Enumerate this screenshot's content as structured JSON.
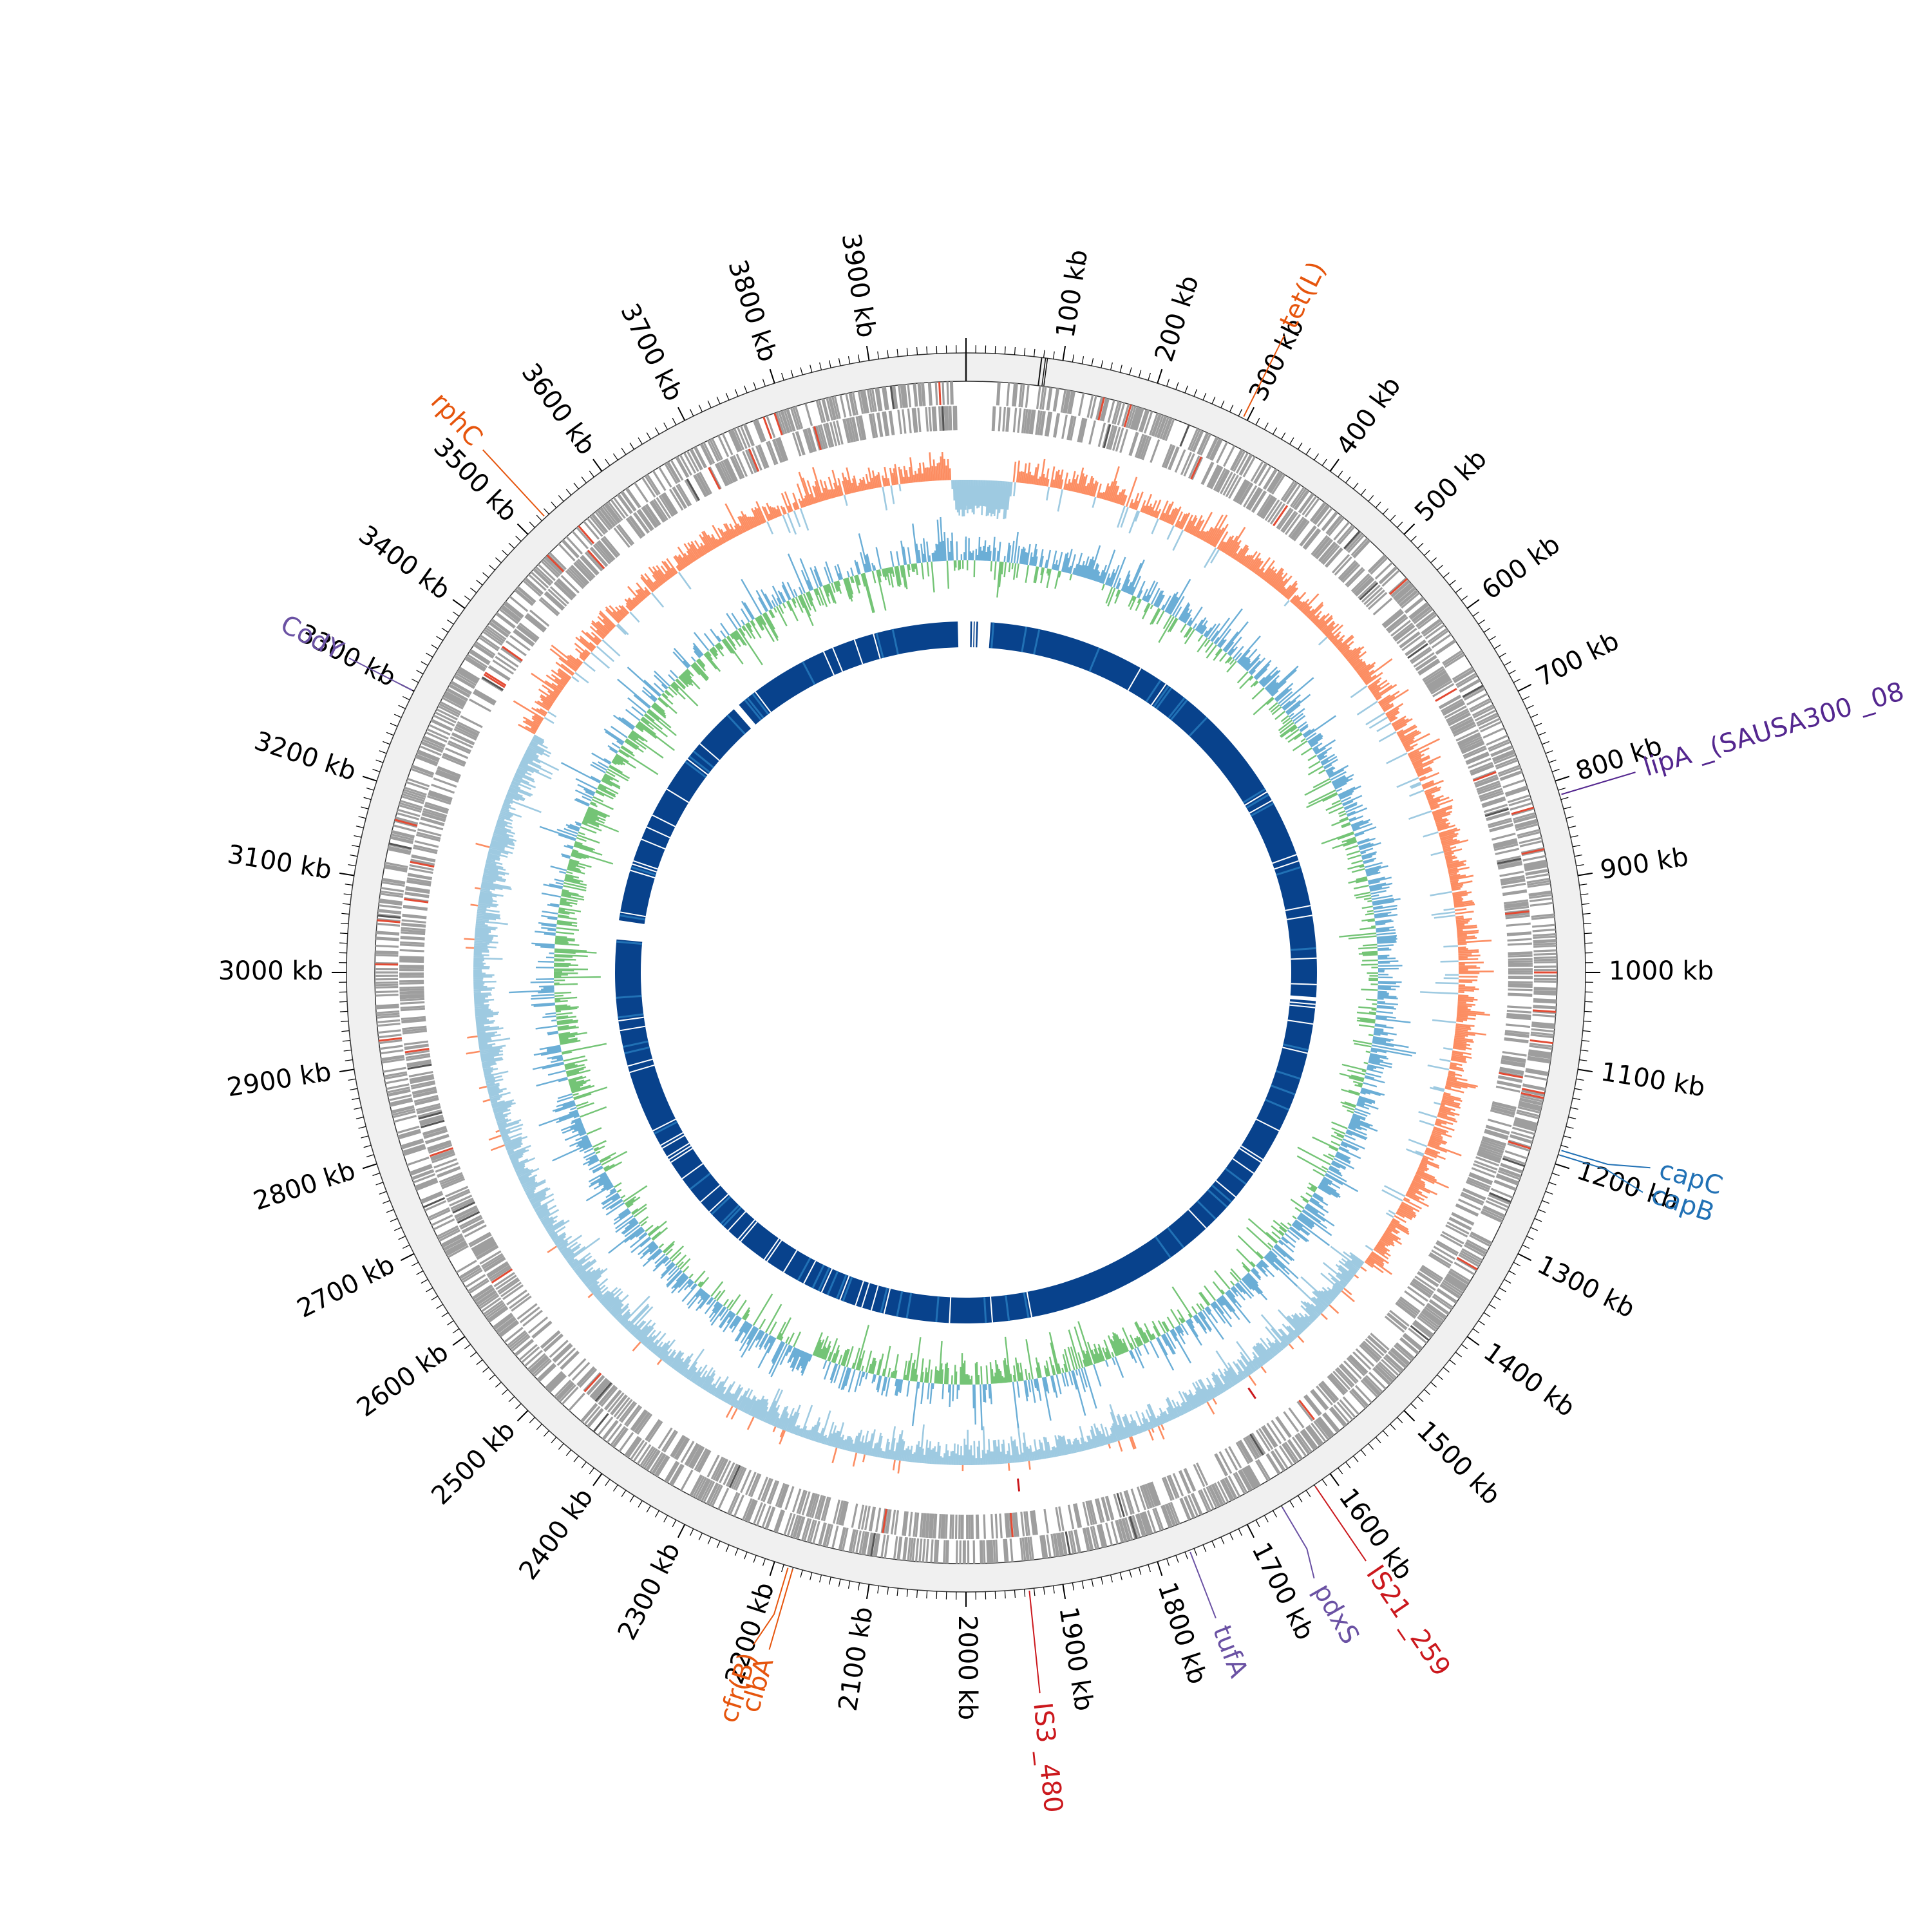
{
  "genome_length_kb": 4000,
  "tick_labels": [
    {
      "kb": 100,
      "label": "100 kb"
    },
    {
      "kb": 200,
      "label": "200 kb"
    },
    {
      "kb": 300,
      "label": "300 kb"
    },
    {
      "kb": 400,
      "label": "400 kb"
    },
    {
      "kb": 500,
      "label": "500 kb"
    },
    {
      "kb": 600,
      "label": "600 kb"
    },
    {
      "kb": 700,
      "label": "700 kb"
    },
    {
      "kb": 800,
      "label": "800 kb"
    },
    {
      "kb": 900,
      "label": "900 kb"
    },
    {
      "kb": 1000,
      "label": "1000 kb"
    },
    {
      "kb": 1100,
      "label": "1100 kb"
    },
    {
      "kb": 1200,
      "label": "1200 kb"
    },
    {
      "kb": 1300,
      "label": "1300 kb"
    },
    {
      "kb": 1400,
      "label": "1400 kb"
    },
    {
      "kb": 1500,
      "label": "1500 kb"
    },
    {
      "kb": 1600,
      "label": "1600 kb"
    },
    {
      "kb": 1700,
      "label": "1700 kb"
    },
    {
      "kb": 1800,
      "label": "1800 kb"
    },
    {
      "kb": 1900,
      "label": "1900 kb"
    },
    {
      "kb": 2000,
      "label": "2000 kb"
    },
    {
      "kb": 2100,
      "label": "2100 kb"
    },
    {
      "kb": 2200,
      "label": "2200 kb"
    },
    {
      "kb": 2300,
      "label": "2300 kb"
    },
    {
      "kb": 2400,
      "label": "2400 kb"
    },
    {
      "kb": 2500,
      "label": "2500 kb"
    },
    {
      "kb": 2600,
      "label": "2600 kb"
    },
    {
      "kb": 2700,
      "label": "2700 kb"
    },
    {
      "kb": 2800,
      "label": "2800 kb"
    },
    {
      "kb": 2900,
      "label": "2900 kb"
    },
    {
      "kb": 3000,
      "label": "3000 kb"
    },
    {
      "kb": 3100,
      "label": "3100 kb"
    },
    {
      "kb": 3200,
      "label": "3200 kb"
    },
    {
      "kb": 3300,
      "label": "3300 kb"
    },
    {
      "kb": 3400,
      "label": "3400 kb"
    },
    {
      "kb": 3500,
      "label": "3500 kb"
    },
    {
      "kb": 3600,
      "label": "3600 kb"
    },
    {
      "kb": 3700,
      "label": "3700 kb"
    },
    {
      "kb": 3800,
      "label": "3800 kb"
    },
    {
      "kb": 3900,
      "label": "3900 kb"
    }
  ],
  "gene_labels": [
    {
      "name": "tet(L)",
      "kb": 295,
      "color": "#e6550d"
    },
    {
      "name": "lipA _(SAUSA300 _08",
      "kb": 815,
      "color": "#54278f"
    },
    {
      "name": "capC",
      "kb": 1185,
      "color": "#2171b5"
    },
    {
      "name": "capB",
      "kb": 1190,
      "color": "#2171b5"
    },
    {
      "name": "IS21 _259",
      "kb": 1620,
      "color": "#cb181d"
    },
    {
      "name": "pdxS",
      "kb": 1660,
      "color": "#6a51a3"
    },
    {
      "name": "tufA",
      "kb": 1765,
      "color": "#6a51a3"
    },
    {
      "name": "IS3 _480",
      "kb": 1935,
      "color": "#cb181d"
    },
    {
      "name": "clbA",
      "kb": 2180,
      "color": "#e6550d"
    },
    {
      "name": "cfr(B)",
      "kb": 2185,
      "color": "#e6550d"
    },
    {
      "name": "CodY",
      "kb": 3300,
      "color": "#6a51a3"
    },
    {
      "name": "rphC",
      "kb": 3525,
      "color": "#e6550d"
    }
  ],
  "colors": {
    "backbone_ring": "#f0f0f0",
    "gene_track": "#9e9e9e",
    "gc_content_pos": "#fc8d62",
    "gc_content_neg": "#9ecae1",
    "gc_skew_pos": "#6baed6",
    "gc_skew_neg": "#74c476",
    "blast_ring": "#08428c",
    "blast_ring_light": "#2171b5"
  },
  "gaps_kb": [
    {
      "ring": "blast",
      "start": 3985,
      "end": 4000
    },
    {
      "ring": "blast",
      "start": 0,
      "end": 45
    },
    {
      "ring": "blast",
      "start": 1045,
      "end": 1052
    },
    {
      "ring": "blast",
      "start": 3060,
      "end": 3095
    },
    {
      "ring": "blast",
      "start": 3540,
      "end": 3552
    },
    {
      "ring": "gene",
      "start": 3990,
      "end": 4000
    },
    {
      "ring": "gene",
      "start": 0,
      "end": 30
    }
  ]
}
